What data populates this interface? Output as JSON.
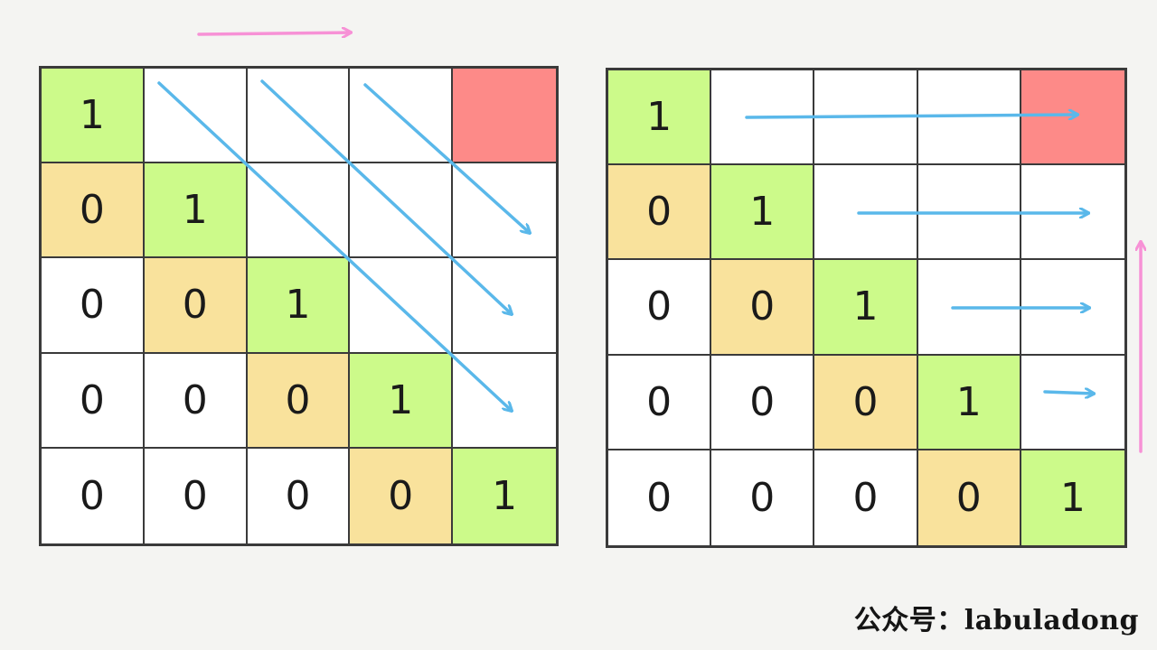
{
  "colors": {
    "one_cell": "#ccfa8a",
    "diagonal_zero_cell": "#f9e29c",
    "target_cell": "#fd8a88",
    "blank_cell": "#ffffff",
    "traversal_arrow": "#5ab8ea",
    "direction_arrow": "#f791d6"
  },
  "left_grid": {
    "cells": [
      [
        "1",
        "",
        "",
        "",
        ""
      ],
      [
        "0",
        "1",
        "",
        "",
        ""
      ],
      [
        "0",
        "0",
        "1",
        "",
        ""
      ],
      [
        "0",
        "0",
        "0",
        "1",
        ""
      ],
      [
        "0",
        "0",
        "0",
        "0",
        "1"
      ]
    ],
    "traversal": "diagonal",
    "direction_arrow": "right"
  },
  "right_grid": {
    "cells": [
      [
        "1",
        "",
        "",
        "",
        ""
      ],
      [
        "0",
        "1",
        "",
        "",
        ""
      ],
      [
        "0",
        "0",
        "1",
        "",
        ""
      ],
      [
        "0",
        "0",
        "0",
        "1",
        ""
      ],
      [
        "0",
        "0",
        "0",
        "0",
        "1"
      ]
    ],
    "traversal": "row-wise",
    "direction_arrow": "up"
  },
  "watermark": "公众号：labuladong"
}
